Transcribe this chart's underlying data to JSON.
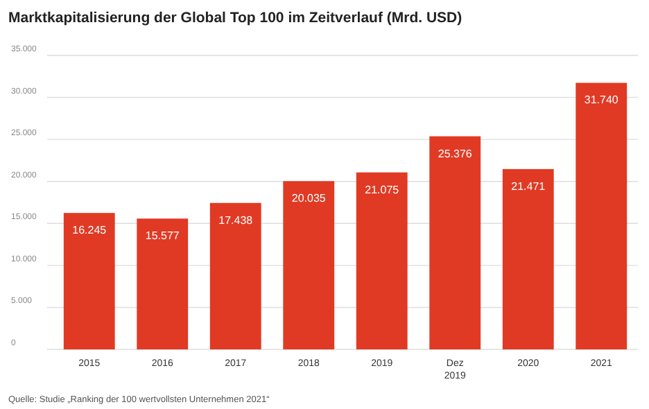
{
  "chart_data": {
    "type": "bar",
    "title": "Marktkapitalisierung der Global Top 100 im Zeitverlauf (Mrd. USD)",
    "categories": [
      "2015",
      "2016",
      "2017",
      "2018",
      "2019",
      "Dez 2019",
      "2020",
      "2021"
    ],
    "values": [
      16245,
      15577,
      17438,
      20035,
      21075,
      25376,
      21471,
      31740
    ],
    "value_labels": [
      "16.245",
      "15.577",
      "17.438",
      "20.035",
      "21.075",
      "25.376",
      "21.471",
      "31.740"
    ],
    "color": "#e03a24",
    "ylim": [
      0,
      35000
    ],
    "yticks": [
      0,
      {
        "value": 5000,
        "label": "5.000"
      },
      {
        "value": 10000,
        "label": "10.000"
      },
      {
        "value": 15000,
        "label": "15.000"
      },
      {
        "value": 20000,
        "label": "20.000"
      },
      {
        "value": 25000,
        "label": "25.000"
      },
      {
        "value": 30000,
        "label": "30.000"
      },
      {
        "value": 35000,
        "label": "35.000"
      }
    ],
    "grid": "y",
    "annotations": [
      "Quelle: Studie „Ranking der 100 wertvollsten Unternehmen 2021“"
    ]
  }
}
